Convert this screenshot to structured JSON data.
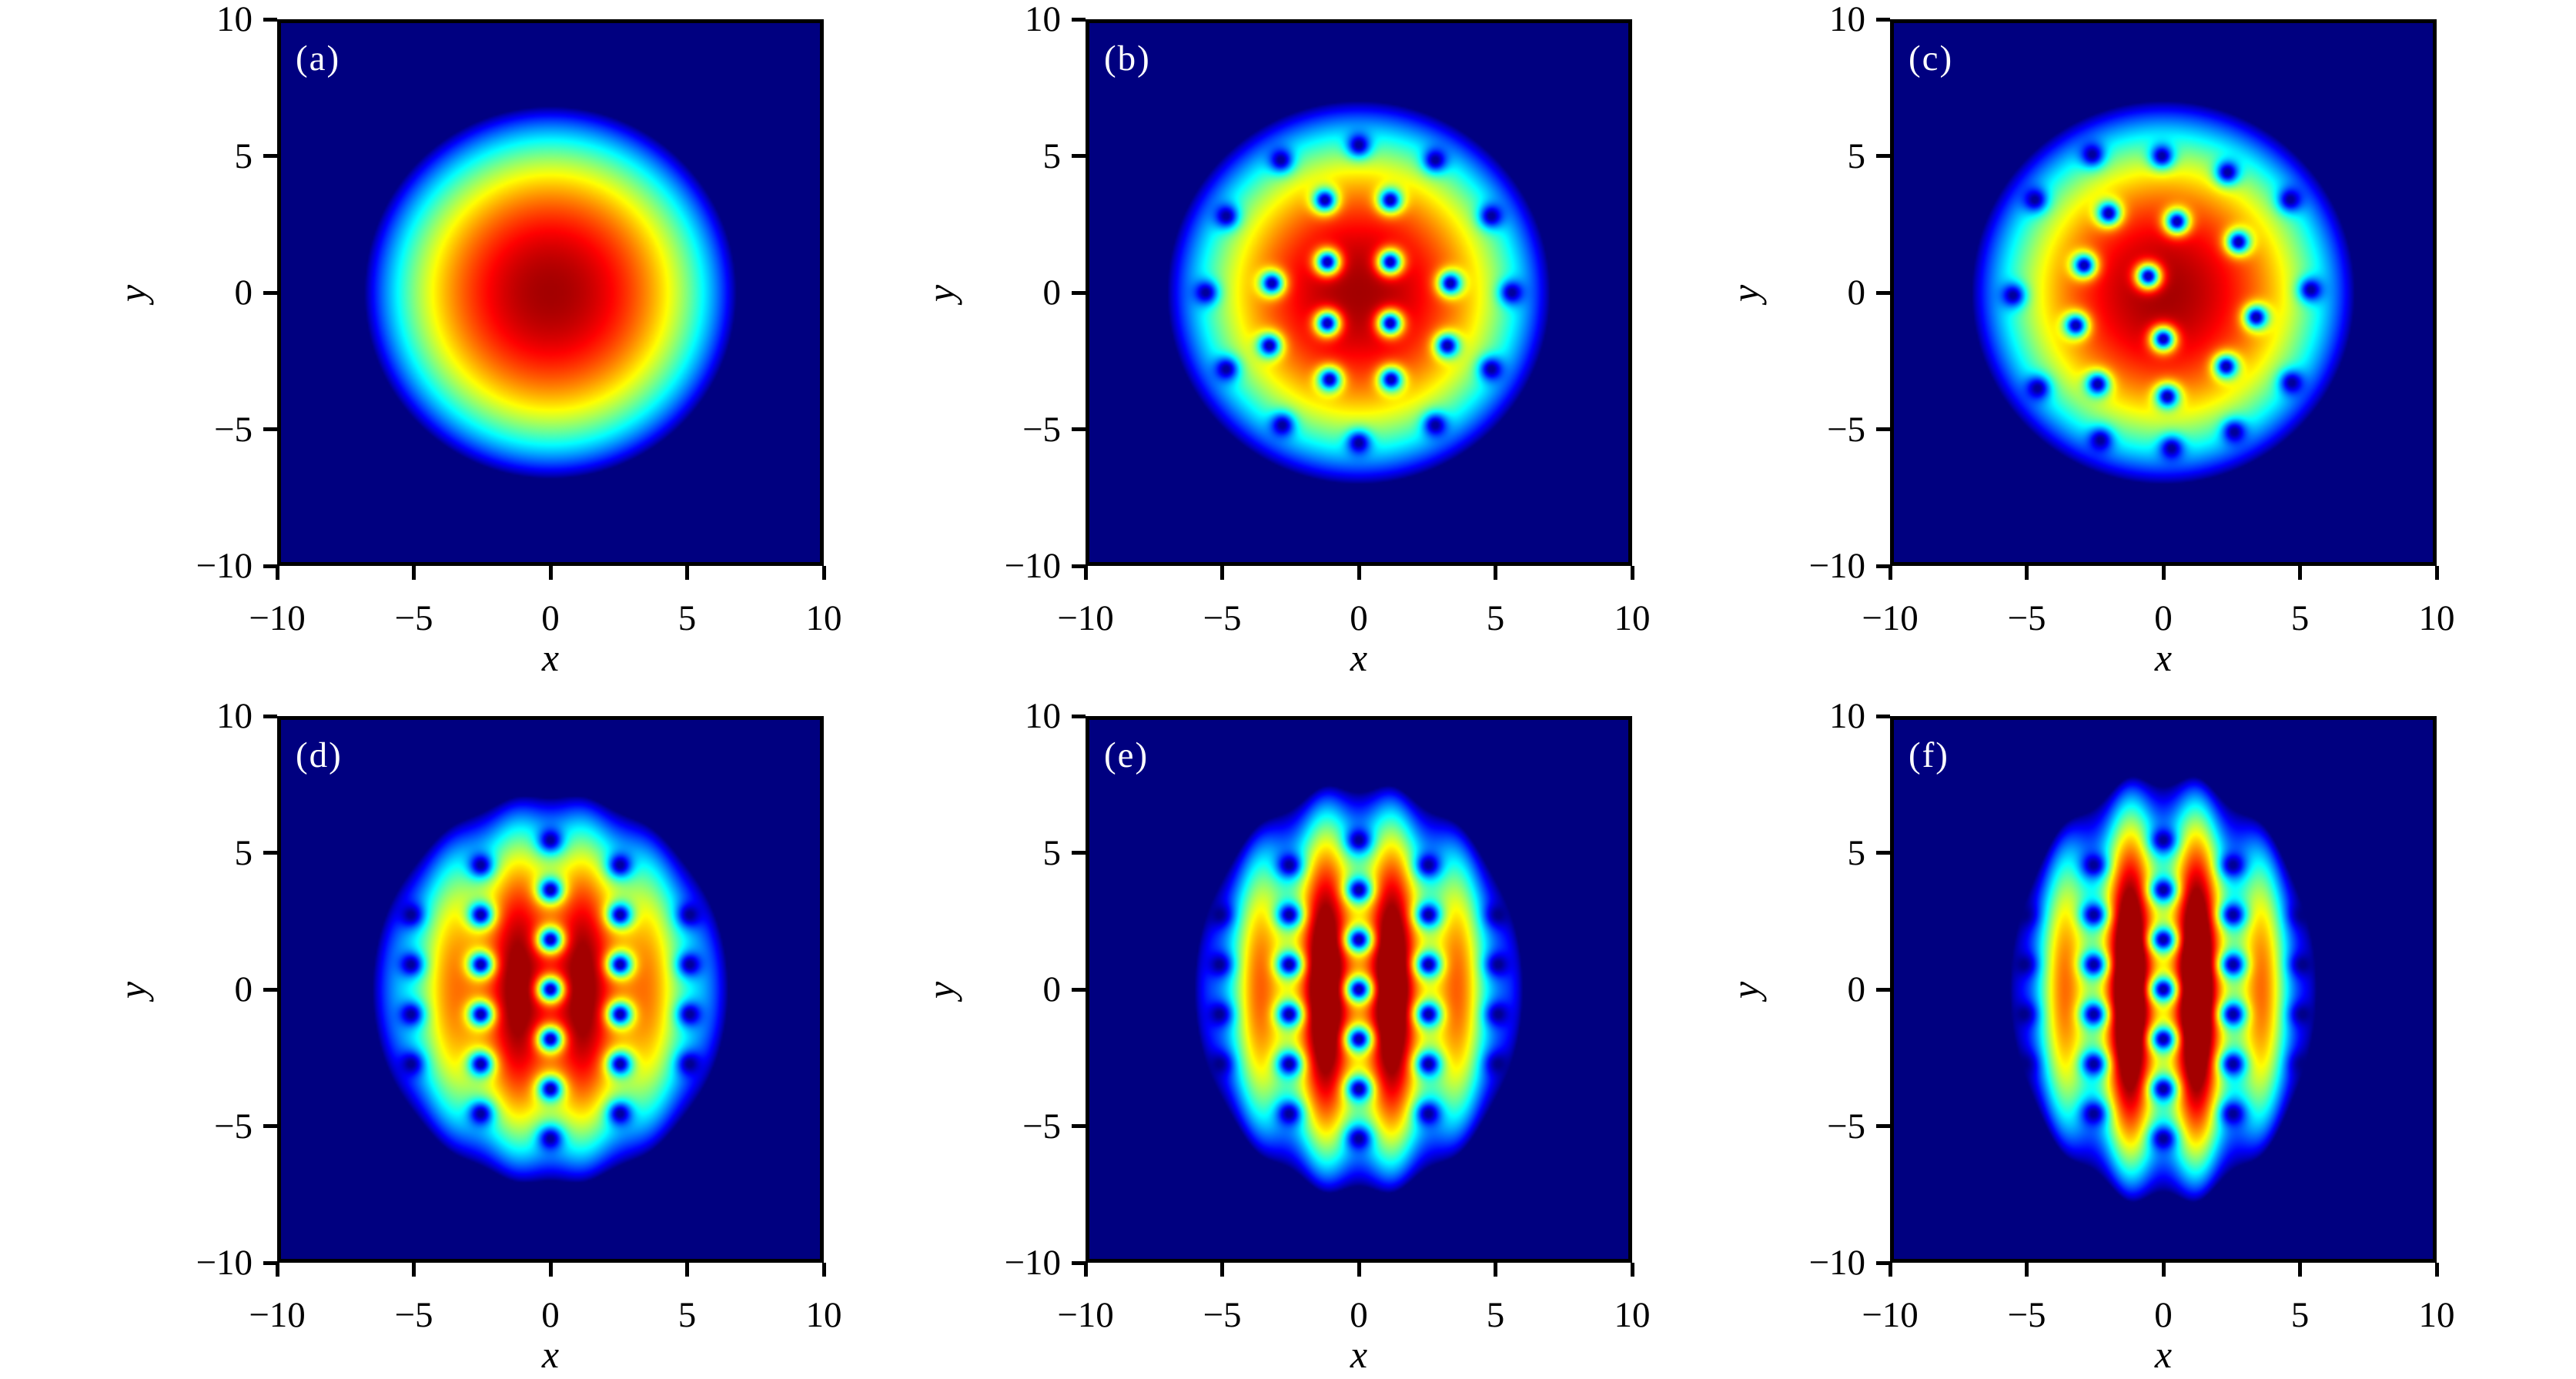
{
  "figure": {
    "kind": "density-heatmap-grid",
    "rows": 2,
    "cols": 3,
    "background": "#ffffff",
    "frame_color": "#000000",
    "panel_tag_color": "#ffffff"
  },
  "chart_data": {
    "type": "heatmap",
    "title": "",
    "colormap": "jet",
    "colormap_low_color": "#000080",
    "colormap_high_color": "#800000",
    "grid": {
      "rows": 2,
      "cols": 3
    },
    "axes": {
      "xlabel": "x",
      "ylabel": "y",
      "x_range": [
        -10,
        10
      ],
      "y_range": [
        -10,
        10
      ],
      "x_ticks": [
        -10,
        -5,
        0,
        5,
        10
      ],
      "y_ticks": [
        10,
        5,
        0,
        -5,
        -10
      ],
      "x_tick_labels": [
        "−10",
        "−5",
        "0",
        "5",
        "10"
      ],
      "y_tick_labels": [
        "10",
        "5",
        "0",
        "−5",
        "−10"
      ]
    },
    "vortex_model": {
      "core_radius": 0.45,
      "core_floor": 0.045,
      "peak_tone": 0.965,
      "gamma": 0.85
    },
    "panels": [
      {
        "label": "(a)",
        "envelope": {
          "rx": 6.8,
          "ry": 6.8,
          "stripe_amp": 0,
          "stripe_period": 2.55,
          "scallop": 0
        },
        "vortices": []
      },
      {
        "label": "(b)",
        "envelope": {
          "rx": 7.0,
          "ry": 7.0,
          "stripe_amp": 0,
          "stripe_period": 2.55,
          "scallop": 0
        },
        "vortices": [
          [
            1.15,
            1.12
          ],
          [
            -1.15,
            1.12
          ],
          [
            -1.15,
            -1.12
          ],
          [
            1.15,
            -1.12
          ],
          [
            1.15,
            3.38
          ],
          [
            -1.24,
            3.38
          ],
          [
            3.35,
            0.34
          ],
          [
            -3.18,
            0.34
          ],
          [
            3.24,
            -1.94
          ],
          [
            -3.27,
            -1.94
          ],
          [
            1.18,
            -3.18
          ],
          [
            -1.07,
            -3.18
          ],
          [
            5.6,
            0
          ],
          [
            4.85,
            2.8
          ],
          [
            2.8,
            4.85
          ],
          [
            0,
            5.4
          ],
          [
            -2.85,
            4.85
          ],
          [
            -4.85,
            2.8
          ],
          [
            -5.6,
            0
          ],
          [
            -4.85,
            -2.8
          ],
          [
            -2.8,
            -4.85
          ],
          [
            0,
            -5.5
          ],
          [
            2.8,
            -4.85
          ],
          [
            4.85,
            -2.8
          ]
        ]
      },
      {
        "label": "(c)",
        "envelope": {
          "rx": 7.0,
          "ry": 7.0,
          "stripe_amp": 0,
          "stripe_period": 2.55,
          "scallop": 0
        },
        "vortices": [
          [
            -0.55,
            0.6
          ],
          [
            0,
            -1.7
          ],
          [
            0.5,
            2.6
          ],
          [
            -2,
            2.9
          ],
          [
            2.75,
            1.85
          ],
          [
            -2.9,
            1
          ],
          [
            3.4,
            -0.9
          ],
          [
            2.3,
            -2.7
          ],
          [
            0.15,
            -3.8
          ],
          [
            -2.4,
            -3.35
          ],
          [
            -3.2,
            -1.2
          ],
          [
            -0.05,
            5
          ],
          [
            2.35,
            4.4
          ],
          [
            -2.6,
            5.05
          ],
          [
            4.65,
            3.4
          ],
          [
            -4.7,
            3.4
          ],
          [
            5.4,
            0.1
          ],
          [
            -5.5,
            -0.1
          ],
          [
            4.7,
            -3.3
          ],
          [
            -4.6,
            -3.5
          ],
          [
            2.6,
            -5.1
          ],
          [
            -2.3,
            -5.4
          ],
          [
            0.3,
            -5.7
          ]
        ]
      },
      {
        "label": "(d)",
        "envelope": {
          "rx": 6.5,
          "ry": 7.0,
          "stripe_amp": 0.1,
          "stripe_period": 2.55,
          "scallop": 0.025
        },
        "vortices": [
          [
            0,
            0
          ],
          [
            0,
            1.82
          ],
          [
            0,
            -1.82
          ],
          [
            0,
            3.64
          ],
          [
            0,
            -3.64
          ],
          [
            0,
            5.46
          ],
          [
            0,
            -5.46
          ],
          [
            2.55,
            0.91
          ],
          [
            2.55,
            -0.91
          ],
          [
            2.55,
            2.73
          ],
          [
            2.55,
            -2.73
          ],
          [
            2.55,
            4.55
          ],
          [
            2.55,
            -4.55
          ],
          [
            -2.55,
            0.91
          ],
          [
            -2.55,
            -0.91
          ],
          [
            -2.55,
            2.73
          ],
          [
            -2.55,
            -2.73
          ],
          [
            -2.55,
            4.55
          ],
          [
            -2.55,
            -4.55
          ],
          [
            5.1,
            0.91
          ],
          [
            5.1,
            -0.91
          ],
          [
            5.1,
            2.73
          ],
          [
            5.1,
            -2.73
          ],
          [
            -5.1,
            0.91
          ],
          [
            -5.1,
            -0.91
          ],
          [
            -5.1,
            2.73
          ],
          [
            -5.1,
            -2.73
          ]
        ]
      },
      {
        "label": "(e)",
        "envelope": {
          "rx": 6.0,
          "ry": 7.2,
          "stripe_amp": 0.26,
          "stripe_period": 2.55,
          "scallop": 0.055
        },
        "vortices": [
          [
            0,
            0
          ],
          [
            0,
            1.82
          ],
          [
            0,
            -1.82
          ],
          [
            0,
            3.64
          ],
          [
            0,
            -3.64
          ],
          [
            0,
            5.46
          ],
          [
            0,
            -5.46
          ],
          [
            2.55,
            0.91
          ],
          [
            2.55,
            -0.91
          ],
          [
            2.55,
            2.73
          ],
          [
            2.55,
            -2.73
          ],
          [
            2.55,
            4.55
          ],
          [
            2.55,
            -4.55
          ],
          [
            -2.55,
            0.91
          ],
          [
            -2.55,
            -0.91
          ],
          [
            -2.55,
            2.73
          ],
          [
            -2.55,
            -2.73
          ],
          [
            -2.55,
            4.55
          ],
          [
            -2.55,
            -4.55
          ],
          [
            5.1,
            0.91
          ],
          [
            5.1,
            -0.91
          ],
          [
            5.1,
            2.73
          ],
          [
            5.1,
            -2.73
          ],
          [
            -5.1,
            0.91
          ],
          [
            -5.1,
            -0.91
          ],
          [
            -5.1,
            2.73
          ],
          [
            -5.1,
            -2.73
          ]
        ]
      },
      {
        "label": "(f)",
        "envelope": {
          "rx": 5.6,
          "ry": 7.4,
          "stripe_amp": 0.36,
          "stripe_period": 2.55,
          "scallop": 0.075
        },
        "vortices": [
          [
            0,
            0
          ],
          [
            0,
            1.82
          ],
          [
            0,
            -1.82
          ],
          [
            0,
            3.64
          ],
          [
            0,
            -3.64
          ],
          [
            0,
            5.46
          ],
          [
            0,
            -5.46
          ],
          [
            2.55,
            0.91
          ],
          [
            2.55,
            -0.91
          ],
          [
            2.55,
            2.73
          ],
          [
            2.55,
            -2.73
          ],
          [
            2.55,
            4.55
          ],
          [
            2.55,
            -4.55
          ],
          [
            -2.55,
            0.91
          ],
          [
            -2.55,
            -0.91
          ],
          [
            -2.55,
            2.73
          ],
          [
            -2.55,
            -2.73
          ],
          [
            -2.55,
            4.55
          ],
          [
            -2.55,
            -4.55
          ],
          [
            5.1,
            0.91
          ],
          [
            5.1,
            -0.91
          ],
          [
            5.1,
            2.73
          ],
          [
            5.1,
            -2.73
          ],
          [
            -5.1,
            0.91
          ],
          [
            -5.1,
            -0.91
          ],
          [
            -5.1,
            2.73
          ],
          [
            -5.1,
            -2.73
          ]
        ]
      }
    ]
  }
}
